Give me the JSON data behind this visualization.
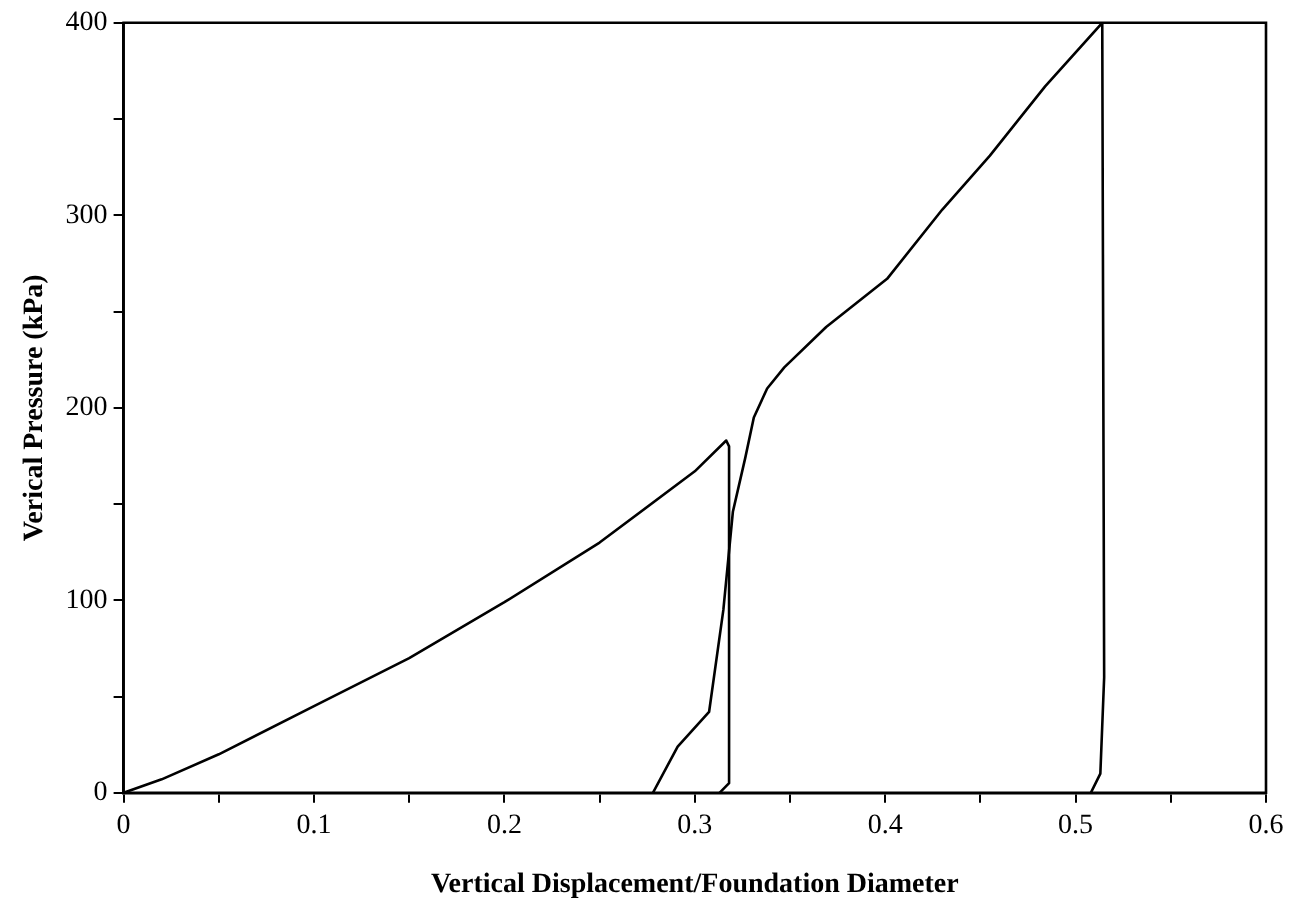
{
  "chart_data": {
    "type": "line",
    "xlabel": "Vertical Displacement/Foundation Diameter",
    "ylabel": "Verical Pressure (kPa)",
    "xlim": [
      0,
      0.6
    ],
    "ylim": [
      0,
      400
    ],
    "xticks": [
      0,
      {
        "value": 0.05,
        "label": null
      },
      0.1,
      {
        "value": 0.15,
        "label": null
      },
      0.2,
      {
        "value": 0.25,
        "label": null
      },
      0.3,
      {
        "value": 0.35,
        "label": null
      },
      0.4,
      {
        "value": 0.45,
        "label": null
      },
      0.5,
      {
        "value": 0.55,
        "label": null
      },
      0.6
    ],
    "yticks": [
      0,
      {
        "value": 50,
        "label": null
      },
      100,
      {
        "value": 150,
        "label": null
      },
      200,
      {
        "value": 250,
        "label": null
      },
      300,
      {
        "value": 350,
        "label": null
      },
      400
    ],
    "grid": false,
    "legend": false,
    "marker": "none",
    "line_style": "solid",
    "series": [
      {
        "color": "#000000",
        "x": [
          0,
          0.02,
          0.05,
          0.1,
          0.15,
          0.2,
          0.25,
          0.3,
          0.3165,
          0.318,
          0.318,
          0.313
        ],
        "values": [
          0,
          7,
          20,
          45,
          70,
          99,
          130,
          167,
          183,
          180,
          5,
          0
        ]
      },
      {
        "color": "#000000",
        "x": [
          0.278,
          0.291,
          0.3075,
          0.315,
          0.32,
          0.3265,
          0.331,
          0.338,
          0.347,
          0.369,
          0.401,
          0.43,
          0.455,
          0.484,
          0.514,
          0.515,
          0.513,
          0.508
        ],
        "values": [
          0,
          24,
          42,
          95,
          146,
          174,
          195,
          210,
          221,
          242,
          267,
          303,
          331,
          367,
          400,
          60,
          10,
          0
        ]
      }
    ]
  }
}
